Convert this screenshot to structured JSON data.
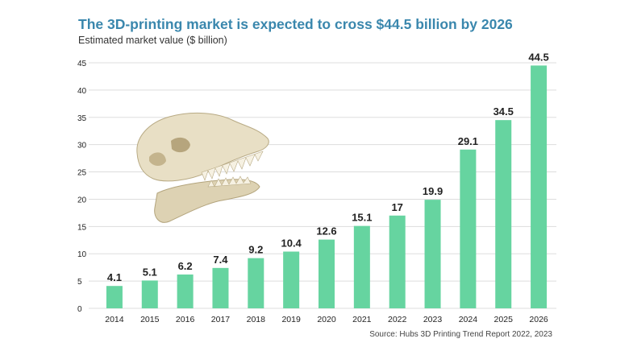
{
  "header": {
    "title": "The 3D-printing market is expected to cross $44.5 billion by 2026",
    "subtitle": "Estimated market value ($ billion)"
  },
  "footer": {
    "source": "Source: Hubs 3D Printing Trend Report 2022, 2023"
  },
  "image": {
    "icon": "dinosaur-skull-icon"
  },
  "chart_data": {
    "type": "bar",
    "categories": [
      "2014",
      "2015",
      "2016",
      "2017",
      "2018",
      "2019",
      "2020",
      "2021",
      "2022",
      "2023",
      "2024",
      "2025",
      "2026"
    ],
    "values": [
      4.1,
      5.1,
      6.2,
      7.4,
      9.2,
      10.4,
      12.6,
      15.1,
      17,
      19.9,
      29.1,
      34.5,
      44.5
    ],
    "data_labels": [
      "4.1",
      "5.1",
      "6.2",
      "7.4",
      "9.2",
      "10.4",
      "12.6",
      "15.1",
      "17",
      "19.9",
      "29.1",
      "34.5",
      "44.5"
    ],
    "yticks": [
      0,
      5,
      10,
      15,
      20,
      25,
      30,
      35,
      40,
      45
    ],
    "ylim": [
      0,
      45
    ],
    "grid": true,
    "bar_color": "#66d4a0",
    "grid_color": "#dddddd"
  }
}
